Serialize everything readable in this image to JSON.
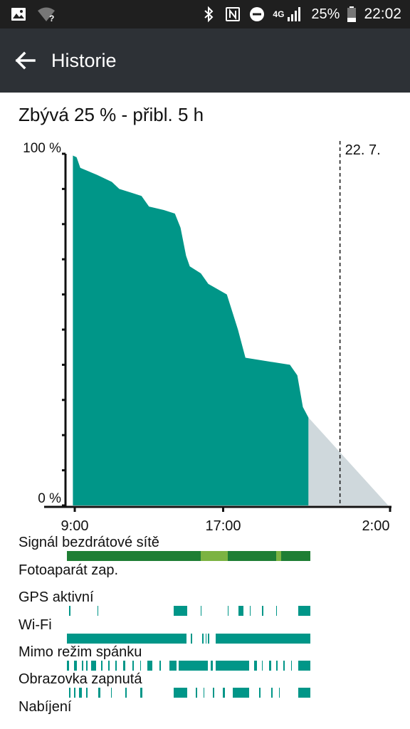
{
  "statusbar": {
    "battery_percent": "25%",
    "time": "22:02",
    "network_type": "4G",
    "icons": [
      "image-icon",
      "wifi-unknown-icon",
      "bluetooth-icon",
      "nfc-icon",
      "dnd-icon",
      "signal-icon",
      "battery-icon"
    ]
  },
  "appbar": {
    "title": "Historie",
    "back_icon": "arrow-back-icon"
  },
  "summary": "Zbývá 25 % - přibl. 5 h",
  "chart_data": {
    "type": "area",
    "ylim": [
      0,
      100
    ],
    "y_tick_labels": [
      "100 %",
      "0 %"
    ],
    "x_tick_labels": [
      "9:00",
      "17:00",
      "2:00"
    ],
    "day_marker_label": "22. 7.",
    "x_unit": "hours since 9:00",
    "history": {
      "name": "",
      "color": "#009688",
      "x": [
        -0.1,
        0.1,
        0.3,
        1.2,
        2.0,
        2.4,
        3.0,
        3.6,
        4.0,
        4.8,
        5.4,
        5.7,
        6.0,
        6.2,
        6.8,
        7.2,
        8.2,
        8.8,
        9.2,
        10.4,
        11.6,
        12.0,
        12.3,
        12.6
      ],
      "y": [
        99.5,
        99,
        96,
        94,
        92,
        90,
        89,
        88,
        85,
        84,
        83,
        79,
        71,
        68,
        66,
        63,
        60,
        50,
        42,
        41,
        40,
        37,
        28,
        25
      ]
    },
    "prediction": {
      "color": "#cfd8dc",
      "x": [
        12.6,
        16.9
      ],
      "y": [
        25,
        0
      ]
    },
    "day_marker_x": 14.3,
    "x_range": [
      -0.5,
      17.0
    ]
  },
  "tracks": [
    {
      "label": "Signál bezdrátové sítě",
      "color": "#1e7e34",
      "segments": [
        [
          0,
          100
        ]
      ],
      "accent_color": "#7cb342",
      "accent_segments": [
        [
          55,
          66
        ],
        [
          86,
          88
        ]
      ]
    },
    {
      "label": "Fotoaparát zap.",
      "color": "#009688",
      "segments": []
    },
    {
      "label": "GPS aktivní",
      "color": "#009688",
      "segments": [
        [
          1,
          1.6
        ],
        [
          12.5,
          13
        ],
        [
          44,
          49.5
        ],
        [
          55,
          55.4
        ],
        [
          66,
          66.5
        ],
        [
          70.5,
          72.5
        ],
        [
          75,
          75.5
        ],
        [
          80,
          80.8
        ],
        [
          86,
          86.4
        ],
        [
          95,
          100
        ]
      ]
    },
    {
      "label": "Wi-Fi",
      "color": "#009688",
      "segments": [
        [
          0,
          49
        ],
        [
          51,
          51.5
        ],
        [
          55.5,
          56
        ],
        [
          57,
          57.4
        ],
        [
          58,
          58.5
        ],
        [
          61,
          100
        ]
      ]
    },
    {
      "label": "Mimo režim spánku",
      "color": "#009688",
      "segments": [
        [
          0,
          1
        ],
        [
          3,
          4
        ],
        [
          6,
          6.6
        ],
        [
          8,
          8.5
        ],
        [
          10,
          12
        ],
        [
          14,
          14.5
        ],
        [
          17,
          17.5
        ],
        [
          20,
          20.5
        ],
        [
          23,
          24
        ],
        [
          27,
          27.5
        ],
        [
          30,
          30.5
        ],
        [
          33,
          35
        ],
        [
          38,
          38.5
        ],
        [
          42,
          45
        ],
        [
          46,
          58
        ],
        [
          59,
          60
        ],
        [
          61,
          75
        ],
        [
          77,
          78
        ],
        [
          80,
          80.5
        ],
        [
          83,
          84
        ],
        [
          86,
          86.5
        ],
        [
          89,
          89.5
        ],
        [
          92,
          92.5
        ],
        [
          95,
          100
        ]
      ]
    },
    {
      "label": "Obrazovka zapnutá",
      "color": "#009688",
      "segments": [
        [
          1,
          1.5
        ],
        [
          3,
          3.5
        ],
        [
          5,
          6
        ],
        [
          8,
          8.5
        ],
        [
          13,
          13.6
        ],
        [
          18,
          18.5
        ],
        [
          24,
          24.5
        ],
        [
          30,
          31
        ],
        [
          44,
          49.5
        ],
        [
          53,
          53.5
        ],
        [
          56,
          56.5
        ],
        [
          60,
          60.5
        ],
        [
          64,
          65
        ],
        [
          68,
          75
        ],
        [
          79,
          79.5
        ],
        [
          84,
          84.5
        ],
        [
          87,
          87.5
        ],
        [
          95,
          100
        ]
      ]
    },
    {
      "label": "Nabíjení",
      "color": "#009688",
      "segments": []
    }
  ]
}
